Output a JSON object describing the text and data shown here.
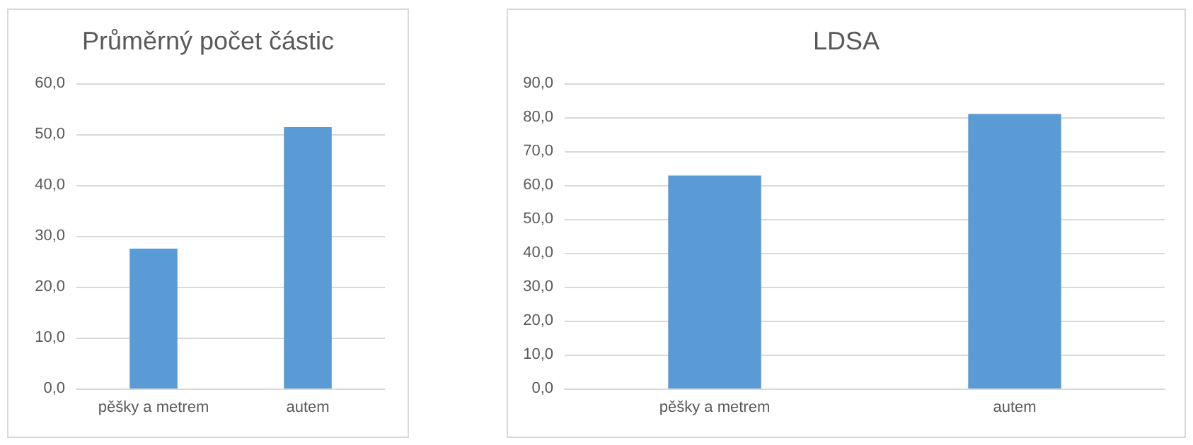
{
  "chart_data": [
    {
      "type": "bar",
      "title": "Průměrný počet částic",
      "categories": [
        "pěšky a metrem",
        "autem"
      ],
      "values": [
        27.5,
        51.4
      ],
      "color": "#5b9bd5",
      "ylim": [
        0,
        60
      ],
      "yticks": [
        {
          "value": 0,
          "label": "0,0"
        },
        {
          "value": 10,
          "label": "10,0"
        },
        {
          "value": 20,
          "label": "20,0"
        },
        {
          "value": 30,
          "label": "30,0"
        },
        {
          "value": 40,
          "label": "40,0"
        },
        {
          "value": 50,
          "label": "50,0"
        },
        {
          "value": 60,
          "label": "60,0"
        }
      ],
      "grid": "y"
    },
    {
      "type": "bar",
      "title": "LDSA",
      "categories": [
        "pěšky a metrem",
        "autem"
      ],
      "values": [
        62.8,
        81.0
      ],
      "color": "#5b9bd5",
      "ylim": [
        0,
        90
      ],
      "yticks": [
        {
          "value": 0,
          "label": "0,0"
        },
        {
          "value": 10,
          "label": "10,0"
        },
        {
          "value": 20,
          "label": "20,0"
        },
        {
          "value": 30,
          "label": "30,0"
        },
        {
          "value": 40,
          "label": "40,0"
        },
        {
          "value": 50,
          "label": "50,0"
        },
        {
          "value": 60,
          "label": "60,0"
        },
        {
          "value": 70,
          "label": "70,0"
        },
        {
          "value": 80,
          "label": "80,0"
        },
        {
          "value": 90,
          "label": "90,0"
        }
      ],
      "grid": "y"
    }
  ]
}
